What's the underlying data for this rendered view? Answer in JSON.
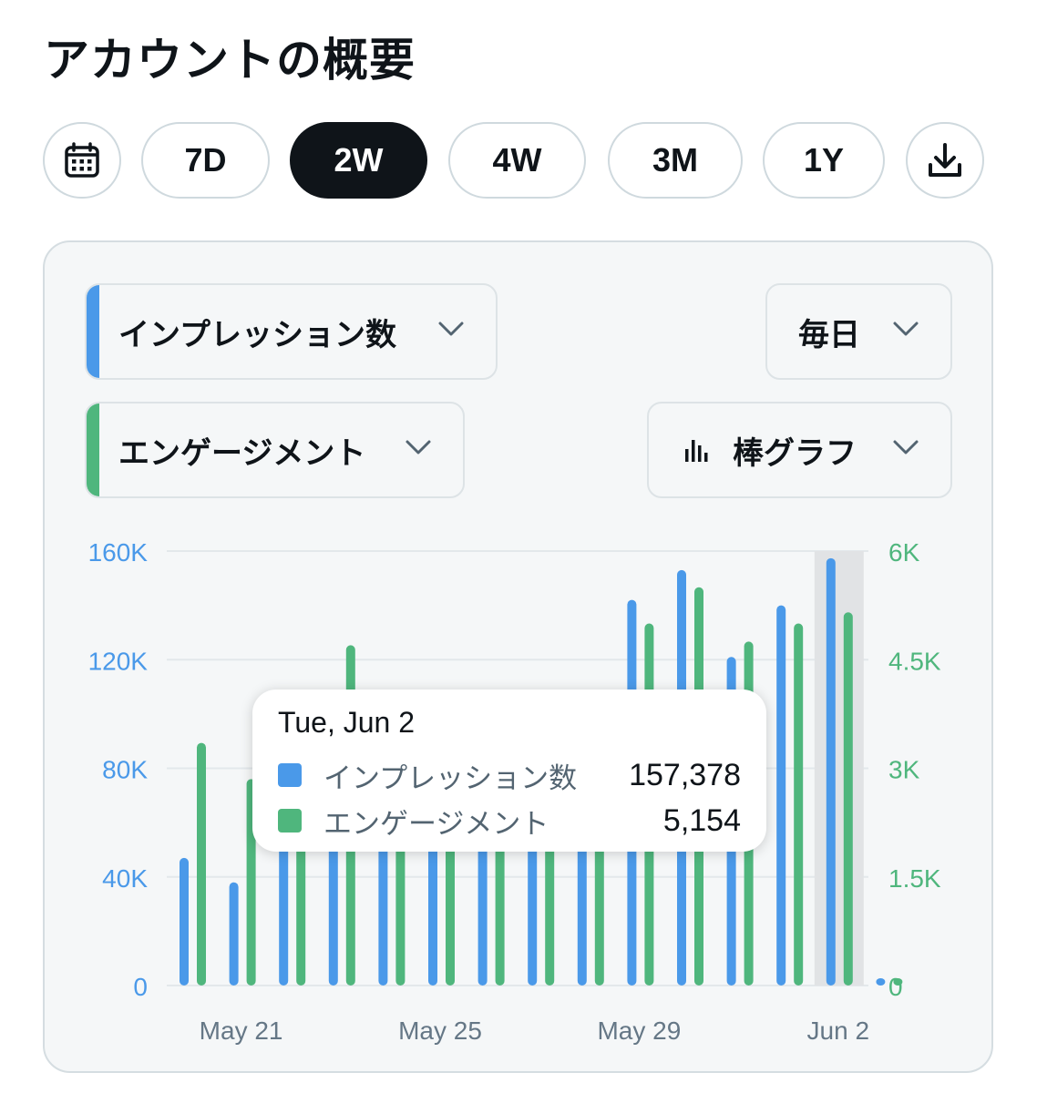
{
  "page": {
    "title": "アカウントの概要"
  },
  "range_selector": {
    "options": [
      {
        "label": "7D",
        "active": false
      },
      {
        "label": "2W",
        "active": true
      },
      {
        "label": "4W",
        "active": false
      },
      {
        "label": "3M",
        "active": false
      },
      {
        "label": "1Y",
        "active": false
      }
    ],
    "icons": {
      "calendar": "calendar-icon",
      "download": "download-icon"
    }
  },
  "controls": {
    "metric1": {
      "label": "インプレッション数",
      "color": "#4a99e9"
    },
    "metric2": {
      "label": "エンゲージメント",
      "color": "#4fb67d"
    },
    "interval": {
      "label": "毎日"
    },
    "chart_type": {
      "label": "棒グラフ",
      "icon": "bar-chart-icon"
    }
  },
  "tooltip": {
    "date": "Tue, Jun 2",
    "rows": [
      {
        "label": "インプレッション数",
        "value": "157,378",
        "color": "#4a99e9"
      },
      {
        "label": "エンゲージメント",
        "value": "5,154",
        "color": "#4fb67d"
      }
    ]
  },
  "chart_data": {
    "type": "bar",
    "categories": [
      "May 20",
      "May 21",
      "May 22",
      "May 23",
      "May 24",
      "May 25",
      "May 26",
      "May 27",
      "May 28",
      "May 29",
      "May 30",
      "May 31",
      "Jun 1",
      "Jun 2",
      "Jun 3"
    ],
    "x_tick_labels": [
      "May 21",
      "May 25",
      "May 29",
      "Jun 2"
    ],
    "x_tick_categories": [
      "May 21",
      "May 25",
      "May 29",
      "Jun 2"
    ],
    "series": [
      {
        "name": "インプレッション数",
        "axis": "left",
        "color": "#4a99e9",
        "values": [
          47000,
          38000,
          72000,
          80000,
          58000,
          68000,
          62000,
          66000,
          58000,
          142000,
          153000,
          121000,
          140000,
          157378,
          0
        ]
      },
      {
        "name": "エンゲージメント",
        "axis": "right",
        "color": "#4fb67d",
        "values": [
          3350,
          2850,
          3000,
          4700,
          2500,
          2600,
          2600,
          2600,
          2400,
          5000,
          5500,
          4750,
          5000,
          5154,
          0
        ]
      }
    ],
    "y_left": {
      "ticks": [
        "0",
        "40K",
        "80K",
        "120K",
        "160K"
      ],
      "range": [
        0,
        160000
      ],
      "color": "#4a99e9"
    },
    "y_right": {
      "ticks": [
        "0",
        "1.5K",
        "3K",
        "4.5K",
        "6K"
      ],
      "range": [
        0,
        6000
      ],
      "color": "#4fb67d"
    },
    "highlighted": "Jun 2",
    "grid": true,
    "legend": "none"
  }
}
